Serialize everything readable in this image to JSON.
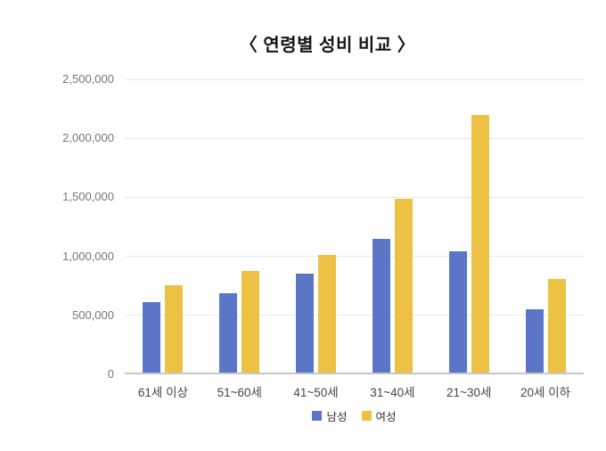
{
  "title": "〈 연령별 성비 비교 〉",
  "colors": {
    "male": "#5B76C7",
    "female": "#EDC244",
    "gridline": "#e7e7e7",
    "baseline": "#c6c6c6",
    "y_label": "#757575",
    "x_label": "#464646",
    "title": "#161616",
    "background": "#ffffff"
  },
  "chart_data": {
    "type": "bar",
    "title": "〈 연령별 성비 비교 〉",
    "categories": [
      "61세 이상",
      "51~60세",
      "41~50세",
      "31~40세",
      "21~30세",
      "20세 이하"
    ],
    "series": [
      {
        "name": "남성",
        "color": "#5B76C7",
        "values": [
          600000,
          670000,
          840000,
          1130000,
          1030000,
          540000
        ]
      },
      {
        "name": "여성",
        "color": "#EDC244",
        "values": [
          740000,
          860000,
          1000000,
          1470000,
          2180000,
          790000
        ]
      }
    ],
    "xlabel": "",
    "ylabel": "",
    "ylim": [
      0,
      2500000
    ],
    "yticks": [
      0,
      500000,
      1000000,
      1500000,
      2000000,
      2500000
    ],
    "ytick_labels": [
      "0",
      "500,000",
      "1,000,000",
      "1,500,000",
      "2,000,000",
      "2,500,000"
    ],
    "grid": true,
    "legend_position": "bottom"
  },
  "legend": {
    "items": [
      {
        "label": "남성",
        "color": "#5B76C7"
      },
      {
        "label": "여성",
        "color": "#EDC244"
      }
    ]
  }
}
